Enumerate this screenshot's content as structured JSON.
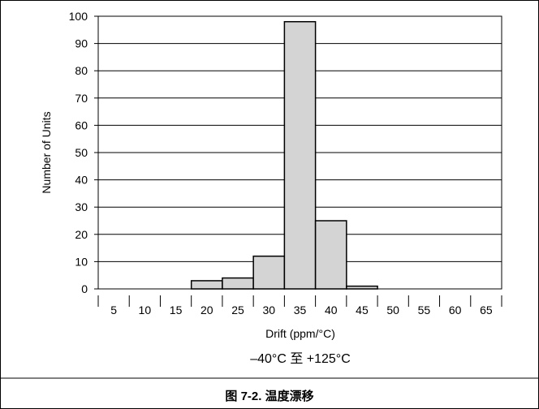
{
  "chart_data": {
    "type": "bar",
    "categories": [
      "5",
      "10",
      "15",
      "20",
      "25",
      "30",
      "35",
      "40",
      "45",
      "50",
      "55",
      "60",
      "65"
    ],
    "values": [
      0,
      0,
      0,
      3,
      4,
      12,
      98,
      25,
      1,
      0,
      0,
      0,
      0
    ],
    "xlabel": "Drift (ppm/°C)",
    "ylabel": "Number of Units",
    "ylim": [
      0,
      100
    ],
    "yticks": [
      0,
      10,
      20,
      30,
      40,
      50,
      60,
      70,
      80,
      90,
      100
    ],
    "grid": true,
    "bar_color": "#d4d4d4",
    "edge_color": "#000000"
  },
  "condition": "–40°C 至 +125°C",
  "caption": "图 7-2. 温度漂移"
}
